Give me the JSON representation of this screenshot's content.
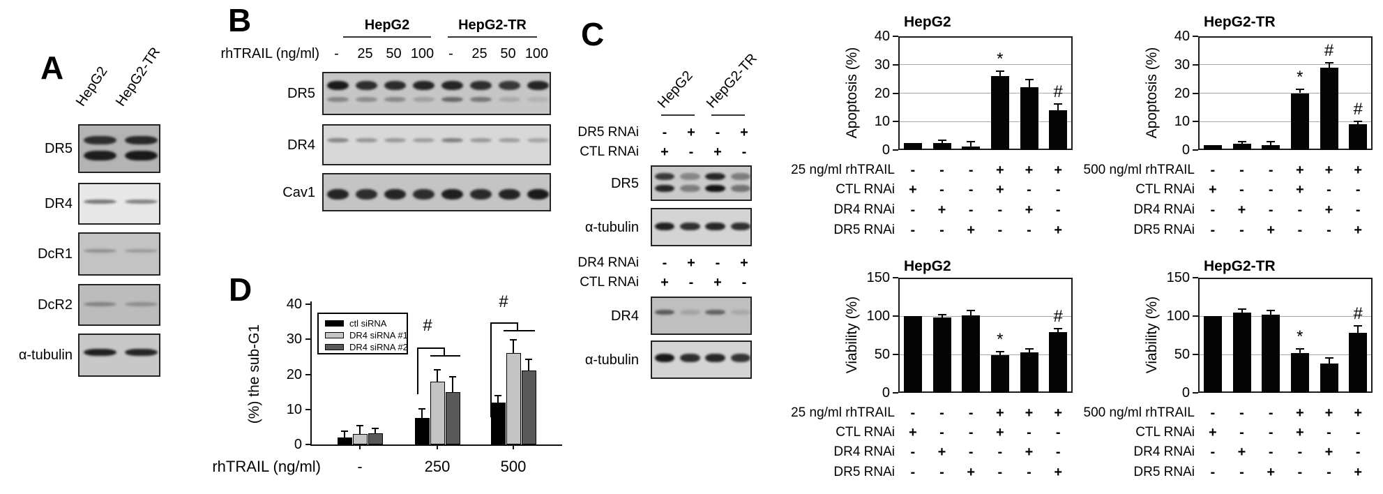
{
  "figure": {
    "background": "#ffffff",
    "bar_color": "#000000",
    "grid_gray": "#a8a8a8"
  },
  "panel_a": {
    "label": "A",
    "col_labels": [
      "HepG2",
      "HepG2-TR"
    ],
    "blots": [
      {
        "label": "DR5",
        "bg": "#b4b4b4",
        "noise": false,
        "lanes": 2,
        "bands": [
          {
            "y": 0.3,
            "h": 0.18,
            "ints": [
              0.78,
              0.82
            ]
          },
          {
            "y": 0.62,
            "h": 0.2,
            "ints": [
              0.88,
              0.9
            ]
          }
        ]
      },
      {
        "label": "DR4",
        "bg": "#e8e8e8",
        "noise": false,
        "lanes": 2,
        "bands": [
          {
            "y": 0.42,
            "h": 0.1,
            "ints": [
              0.5,
              0.45
            ]
          }
        ]
      },
      {
        "label": "DcR1",
        "bg": "#c3c3c3",
        "noise": false,
        "lanes": 2,
        "bands": [
          {
            "y": 0.4,
            "h": 0.08,
            "ints": [
              0.28,
              0.22
            ]
          }
        ]
      },
      {
        "label": "DcR2",
        "bg": "#bcbcbc",
        "noise": true,
        "lanes": 2,
        "bands": [
          {
            "y": 0.45,
            "h": 0.09,
            "ints": [
              0.32,
              0.26
            ]
          }
        ]
      },
      {
        "label": "α-tubulin",
        "bg": "#c8c8c8",
        "noise": false,
        "lanes": 2,
        "bands": [
          {
            "y": 0.4,
            "h": 0.17,
            "ints": [
              0.88,
              0.85
            ]
          }
        ]
      }
    ]
  },
  "panel_b": {
    "label": "B",
    "dose_header": "rhTRAIL (ng/ml)",
    "groups": [
      "HepG2",
      "HepG2-TR"
    ],
    "doses": [
      "-",
      "25",
      "50",
      "100",
      "-",
      "25",
      "50",
      "100"
    ],
    "blots": [
      {
        "label": "DR5",
        "bg": "#c6c6c6",
        "noise": false,
        "lanes": 8,
        "bands": [
          {
            "y": 0.28,
            "h": 0.2,
            "ints": [
              0.9,
              0.8,
              0.82,
              0.85,
              0.85,
              0.8,
              0.75,
              0.85
            ]
          },
          {
            "y": 0.6,
            "h": 0.11,
            "ints": [
              0.35,
              0.3,
              0.32,
              0.2,
              0.5,
              0.42,
              0.15,
              0.1
            ]
          }
        ]
      },
      {
        "label": "DR4",
        "bg": "#d8d8d8",
        "noise": false,
        "lanes": 8,
        "bands": [
          {
            "y": 0.36,
            "h": 0.11,
            "ints": [
              0.4,
              0.32,
              0.3,
              0.28,
              0.42,
              0.3,
              0.28,
              0.25
            ]
          }
        ]
      },
      {
        "label": "Cav1",
        "bg": "#c4c4c4",
        "noise": false,
        "lanes": 8,
        "bands": [
          {
            "y": 0.52,
            "h": 0.26,
            "ints": [
              0.85,
              0.8,
              0.85,
              0.8,
              0.88,
              0.82,
              0.85,
              0.9
            ]
          }
        ]
      }
    ]
  },
  "panel_c": {
    "label": "C",
    "col_labels": [
      "HepG2",
      "HepG2-TR"
    ],
    "blocks": [
      {
        "condition_rows": [
          {
            "label": "DR5 RNAi",
            "values": [
              "-",
              "+",
              "-",
              "+"
            ]
          },
          {
            "label": "CTL RNAi",
            "values": [
              "+",
              "-",
              "+",
              "-"
            ]
          }
        ],
        "blots": [
          {
            "label": "DR5",
            "bg": "#cacaca",
            "noise": false,
            "lanes": 4,
            "bands": [
              {
                "y": 0.28,
                "h": 0.2,
                "ints": [
                  0.75,
                  0.35,
                  0.85,
                  0.4
                ]
              },
              {
                "y": 0.6,
                "h": 0.2,
                "ints": [
                  0.85,
                  0.4,
                  0.95,
                  0.45
                ]
              }
            ]
          },
          {
            "label": "α-tubulin",
            "bg": "#d4d4d4",
            "noise": false,
            "lanes": 4,
            "bands": [
              {
                "y": 0.45,
                "h": 0.2,
                "ints": [
                  0.88,
                  0.8,
                  0.85,
                  0.8
                ]
              }
            ]
          }
        ]
      },
      {
        "condition_rows": [
          {
            "label": "DR4 RNAi",
            "values": [
              "-",
              "+",
              "-",
              "+"
            ]
          },
          {
            "label": "CTL RNAi",
            "values": [
              "+",
              "-",
              "+",
              "-"
            ]
          }
        ],
        "blots": [
          {
            "label": "DR4",
            "bg": "#bfbfbf",
            "noise": true,
            "lanes": 4,
            "bands": [
              {
                "y": 0.38,
                "h": 0.13,
                "ints": [
                  0.55,
                  0.15,
                  0.5,
                  0.12
                ]
              }
            ]
          },
          {
            "label": "α-tubulin",
            "bg": "#d4d4d4",
            "noise": false,
            "lanes": 4,
            "bands": [
              {
                "y": 0.42,
                "h": 0.22,
                "ints": [
                  0.92,
                  0.82,
                  0.85,
                  0.78
                ]
              }
            ]
          }
        ]
      }
    ]
  },
  "panel_d": {
    "label": "D"
  },
  "chart_data": [
    {
      "id": "sub-g1",
      "type": "bar",
      "title": "",
      "ylabel": "(%) the sub-G1",
      "xlabel": "rhTRAIL (ng/ml)",
      "ylim": [
        0,
        40
      ],
      "yticks": [
        0,
        10,
        20,
        30,
        40
      ],
      "categories": [
        "-",
        "250",
        "500"
      ],
      "series": [
        {
          "name": "ctl siRNA",
          "color": "#000000",
          "values": [
            2,
            7.5,
            12
          ],
          "errors": [
            2,
            2.8,
            2.2
          ]
        },
        {
          "name": "DR4 siRNA #1",
          "color": "#c4c4c4",
          "values": [
            3,
            18,
            26
          ],
          "errors": [
            2.5,
            3.5,
            4
          ]
        },
        {
          "name": "DR4 siRNA #2",
          "color": "#595959",
          "values": [
            3.2,
            15,
            21
          ],
          "errors": [
            1.5,
            4.5,
            3.5
          ]
        }
      ],
      "legend_position": "upper-left",
      "grid": false,
      "annotations": [
        {
          "text": "#",
          "over_category": "250"
        },
        {
          "text": "#",
          "over_category": "500"
        }
      ]
    },
    {
      "id": "apoptosis-hepg2",
      "type": "bar",
      "title": "HepG2",
      "ylabel": "Apoptosis (%)",
      "ylim": [
        0,
        40
      ],
      "yticks": [
        0,
        10,
        20,
        30,
        40
      ],
      "grid": true,
      "values": [
        2.5,
        2.5,
        1.2,
        26,
        22,
        14
      ],
      "errors": [
        0,
        1.2,
        2,
        2,
        3,
        2.5
      ],
      "bar_annotations": [
        "",
        "",
        "",
        "*",
        "",
        "#"
      ],
      "conditions": [
        {
          "label": "25 ng/ml rhTRAIL",
          "values": [
            "-",
            "-",
            "-",
            "+",
            "+",
            "+"
          ]
        },
        {
          "label": "CTL RNAi",
          "values": [
            "+",
            "-",
            "-",
            "+",
            "-",
            "-"
          ]
        },
        {
          "label": "DR4 RNAi",
          "values": [
            "-",
            "+",
            "-",
            "-",
            "+",
            "-"
          ]
        },
        {
          "label": "DR5 RNAi",
          "values": [
            "-",
            "-",
            "+",
            "-",
            "-",
            "+"
          ]
        }
      ]
    },
    {
      "id": "apoptosis-hepg2-tr",
      "type": "bar",
      "title": "HepG2-TR",
      "ylabel": "Apoptosis (%)",
      "ylim": [
        0,
        40
      ],
      "yticks": [
        0,
        10,
        20,
        30,
        40
      ],
      "grid": true,
      "values": [
        1.8,
        2.2,
        1.8,
        20,
        29,
        9
      ],
      "errors": [
        0,
        1,
        1.5,
        1.5,
        2,
        1.2
      ],
      "bar_annotations": [
        "",
        "",
        "",
        "*",
        "#",
        "#"
      ],
      "conditions": [
        {
          "label": "500 ng/ml rhTRAIL",
          "values": [
            "-",
            "-",
            "-",
            "+",
            "+",
            "+"
          ]
        },
        {
          "label": "CTL RNAi",
          "values": [
            "+",
            "-",
            "-",
            "+",
            "-",
            "-"
          ]
        },
        {
          "label": "DR4 RNAi",
          "values": [
            "-",
            "+",
            "-",
            "-",
            "+",
            "-"
          ]
        },
        {
          "label": "DR5 RNAi",
          "values": [
            "-",
            "-",
            "+",
            "-",
            "-",
            "+"
          ]
        }
      ]
    },
    {
      "id": "viability-hepg2",
      "type": "bar",
      "title": "HepG2",
      "ylabel": "Viability (%)",
      "ylim": [
        0,
        150
      ],
      "yticks": [
        0,
        50,
        100,
        150
      ],
      "grid": true,
      "values": [
        100,
        98,
        101,
        49,
        53,
        79
      ],
      "errors": [
        0,
        5,
        7,
        6,
        5,
        6
      ],
      "bar_annotations": [
        "",
        "",
        "",
        "*",
        "",
        "#"
      ],
      "conditions": [
        {
          "label": "25 ng/ml rhTRAIL",
          "values": [
            "-",
            "-",
            "-",
            "+",
            "+",
            "+"
          ]
        },
        {
          "label": "CTL RNAi",
          "values": [
            "+",
            "-",
            "-",
            "+",
            "-",
            "-"
          ]
        },
        {
          "label": "DR4 RNAi",
          "values": [
            "-",
            "+",
            "-",
            "-",
            "+",
            "-"
          ]
        },
        {
          "label": "DR5 RNAi",
          "values": [
            "-",
            "-",
            "+",
            "-",
            "-",
            "+"
          ]
        }
      ]
    },
    {
      "id": "viability-hepg2-tr",
      "type": "bar",
      "title": "HepG2-TR",
      "ylabel": "Viability (%)",
      "ylim": [
        0,
        150
      ],
      "yticks": [
        0,
        50,
        100,
        150
      ],
      "grid": true,
      "values": [
        100,
        105,
        102,
        52,
        38,
        78
      ],
      "errors": [
        0,
        5,
        6,
        6,
        8,
        10
      ],
      "bar_annotations": [
        "",
        "",
        "",
        "*",
        "",
        "#"
      ],
      "conditions": [
        {
          "label": "500 ng/ml rhTRAIL",
          "values": [
            "-",
            "-",
            "-",
            "+",
            "+",
            "+"
          ]
        },
        {
          "label": "CTL RNAi",
          "values": [
            "+",
            "-",
            "-",
            "+",
            "-",
            "-"
          ]
        },
        {
          "label": "DR4 RNAi",
          "values": [
            "-",
            "+",
            "-",
            "-",
            "+",
            "-"
          ]
        },
        {
          "label": "DR5 RNAi",
          "values": [
            "-",
            "-",
            "+",
            "-",
            "-",
            "+"
          ]
        }
      ]
    }
  ]
}
